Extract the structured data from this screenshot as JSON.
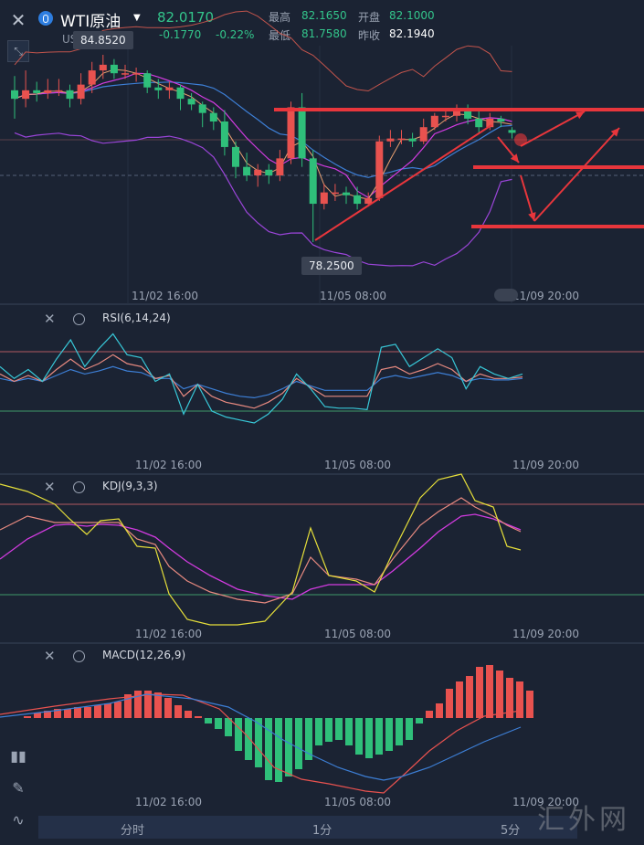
{
  "header": {
    "symbol_name": "WTI原油",
    "symbol_code": "USOIL",
    "last_price": "82.0170",
    "change": "-0.1770",
    "change_pct": "-0.22%",
    "quotes": [
      {
        "label": "最高",
        "value": "82.1650",
        "color": "#33c58b"
      },
      {
        "label": "开盘",
        "value": "82.1000",
        "color": "#33c58b"
      },
      {
        "label": "最低",
        "value": "81.7580",
        "color": "#33c58b"
      },
      {
        "label": "昨收",
        "value": "82.1940",
        "color": "#ffffff"
      }
    ]
  },
  "main": {
    "high_marker": "84.8520",
    "low_marker": "78.2500",
    "time_labels": [
      "11/02 16:00",
      "11/05 08:00",
      "11/09 20:00"
    ]
  },
  "panes": [
    {
      "id": "rsi",
      "label": "RSI(6,14,24)",
      "time_labels": [
        "11/02 16:00",
        "11/05 08:00",
        "11/09 20:00"
      ]
    },
    {
      "id": "kdj",
      "label": "KDJ(9,3,3)",
      "time_labels": [
        "11/02 16:00",
        "11/05 08:00",
        "11/09 20:00"
      ]
    },
    {
      "id": "macd",
      "label": "MACD(12,26,9)",
      "time_labels": [
        "11/02 16:00",
        "11/05 08:00",
        "11/09 20:00"
      ]
    }
  ],
  "bottom_tabs": [
    "分时",
    "1分",
    "5分"
  ],
  "watermark": "汇外网",
  "colors": {
    "up": "#e8524f",
    "down": "#2fbf7a",
    "bg": "#1b2333",
    "annotation": "#e8363c"
  },
  "chart_data": {
    "type": "candlestick",
    "candles": [
      {
        "o": 83.6,
        "c": 83.3,
        "h": 84.1,
        "l": 82.6
      },
      {
        "o": 83.3,
        "c": 83.6,
        "h": 84.3,
        "l": 83.0
      },
      {
        "o": 83.6,
        "c": 83.5,
        "h": 83.9,
        "l": 83.2
      },
      {
        "o": 83.5,
        "c": 83.6,
        "h": 84.0,
        "l": 83.3
      },
      {
        "o": 83.6,
        "c": 83.6,
        "h": 84.0,
        "l": 83.4
      },
      {
        "o": 83.6,
        "c": 83.3,
        "h": 83.8,
        "l": 83.0
      },
      {
        "o": 83.3,
        "c": 83.8,
        "h": 84.2,
        "l": 83.1
      },
      {
        "o": 83.8,
        "c": 84.3,
        "h": 84.6,
        "l": 83.5
      },
      {
        "o": 84.3,
        "c": 84.5,
        "h": 84.85,
        "l": 84.0
      },
      {
        "o": 84.5,
        "c": 84.2,
        "h": 84.7,
        "l": 84.0
      },
      {
        "o": 84.2,
        "c": 84.2,
        "h": 84.5,
        "l": 84.0
      },
      {
        "o": 84.2,
        "c": 84.2,
        "h": 84.4,
        "l": 83.9
      },
      {
        "o": 84.2,
        "c": 83.7,
        "h": 84.3,
        "l": 83.5
      },
      {
        "o": 83.7,
        "c": 83.6,
        "h": 84.0,
        "l": 83.3
      },
      {
        "o": 83.6,
        "c": 83.7,
        "h": 83.9,
        "l": 83.3
      },
      {
        "o": 83.7,
        "c": 83.3,
        "h": 83.8,
        "l": 82.9
      },
      {
        "o": 83.3,
        "c": 83.1,
        "h": 83.5,
        "l": 82.9
      },
      {
        "o": 83.1,
        "c": 82.8,
        "h": 83.2,
        "l": 82.3
      },
      {
        "o": 82.8,
        "c": 82.5,
        "h": 83.0,
        "l": 82.2
      },
      {
        "o": 82.5,
        "c": 81.6,
        "h": 82.9,
        "l": 81.3
      },
      {
        "o": 81.6,
        "c": 80.9,
        "h": 81.8,
        "l": 80.5
      },
      {
        "o": 80.9,
        "c": 80.6,
        "h": 81.4,
        "l": 80.4
      },
      {
        "o": 80.6,
        "c": 80.8,
        "h": 81.0,
        "l": 80.2
      },
      {
        "o": 80.8,
        "c": 80.6,
        "h": 81.0,
        "l": 80.3
      },
      {
        "o": 80.6,
        "c": 81.2,
        "h": 81.5,
        "l": 80.4
      },
      {
        "o": 81.2,
        "c": 83.0,
        "h": 83.2,
        "l": 81.0
      },
      {
        "o": 83.0,
        "c": 81.2,
        "h": 83.5,
        "l": 80.9
      },
      {
        "o": 81.2,
        "c": 79.6,
        "h": 81.5,
        "l": 78.25
      },
      {
        "o": 79.6,
        "c": 80.0,
        "h": 80.3,
        "l": 79.4
      },
      {
        "o": 80.0,
        "c": 80.0,
        "h": 80.3,
        "l": 79.7
      },
      {
        "o": 80.0,
        "c": 79.9,
        "h": 80.2,
        "l": 79.6
      },
      {
        "o": 79.9,
        "c": 79.6,
        "h": 80.2,
        "l": 79.4
      },
      {
        "o": 79.6,
        "c": 79.8,
        "h": 80.0,
        "l": 79.5
      },
      {
        "o": 79.8,
        "c": 81.8,
        "h": 82.0,
        "l": 79.7
      },
      {
        "o": 81.8,
        "c": 81.9,
        "h": 82.2,
        "l": 81.6
      },
      {
        "o": 81.9,
        "c": 81.9,
        "h": 82.2,
        "l": 81.7
      },
      {
        "o": 81.9,
        "c": 81.8,
        "h": 82.1,
        "l": 81.6
      },
      {
        "o": 81.8,
        "c": 82.3,
        "h": 82.6,
        "l": 81.7
      },
      {
        "o": 82.3,
        "c": 82.7,
        "h": 82.8,
        "l": 82.2
      },
      {
        "o": 82.7,
        "c": 82.7,
        "h": 82.9,
        "l": 82.5
      },
      {
        "o": 82.7,
        "c": 82.9,
        "h": 83.1,
        "l": 82.5
      },
      {
        "o": 82.9,
        "c": 82.6,
        "h": 83.1,
        "l": 82.4
      },
      {
        "o": 82.6,
        "c": 82.3,
        "h": 82.9,
        "l": 82.1
      },
      {
        "o": 82.3,
        "c": 82.6,
        "h": 82.8,
        "l": 82.2
      },
      {
        "o": 82.6,
        "c": 82.5,
        "h": 82.7,
        "l": 82.3
      },
      {
        "o": 82.2,
        "c": 82.1,
        "h": 82.3,
        "l": 81.9
      }
    ],
    "indicator_lines": {
      "rsi6": [
        60,
        52,
        58,
        50,
        65,
        78,
        60,
        72,
        82,
        68,
        66,
        50,
        55,
        28,
        48,
        30,
        26,
        24,
        22,
        28,
        38,
        55,
        45,
        33,
        32,
        32,
        31,
        73,
        75,
        60,
        66,
        72,
        66,
        45,
        60,
        55,
        52,
        55
      ],
      "rsi14": [
        55,
        50,
        54,
        50,
        58,
        65,
        58,
        62,
        68,
        62,
        60,
        52,
        54,
        40,
        48,
        40,
        36,
        34,
        32,
        36,
        42,
        52,
        46,
        40,
        40,
        40,
        40,
        58,
        60,
        55,
        58,
        62,
        58,
        50,
        55,
        52,
        52,
        53
      ],
      "rsi24": [
        52,
        50,
        52,
        50,
        54,
        58,
        55,
        57,
        60,
        57,
        56,
        52,
        52,
        45,
        48,
        45,
        42,
        40,
        39,
        41,
        45,
        50,
        47,
        44,
        44,
        44,
        44,
        52,
        54,
        52,
        54,
        56,
        54,
        50,
        52,
        51,
        51,
        52
      ]
    },
    "annotations": [
      "rising trendline",
      "horizontal resistance line",
      "horizontal support lines",
      "projected-path arrows"
    ]
  }
}
